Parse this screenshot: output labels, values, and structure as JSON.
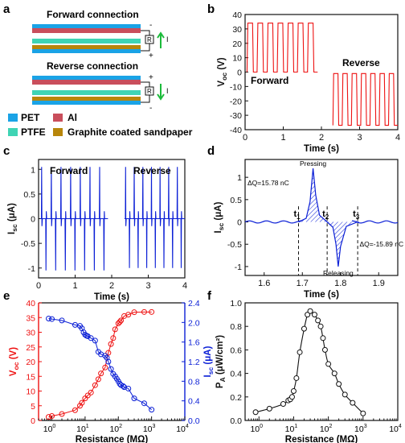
{
  "panels": {
    "a": {
      "letter": "a",
      "forward_title": "Forward connection",
      "reverse_title": "Reverse connection",
      "resistor": "R",
      "current": "I",
      "plus": "+",
      "minus": "-",
      "legend": [
        {
          "label": "PET",
          "color": "#1aa3e6"
        },
        {
          "label": "Al",
          "color": "#c94e5c"
        },
        {
          "label": "PTFE",
          "color": "#3fd4b4"
        },
        {
          "label": "Graphite coated sandpaper",
          "color": "#b8860b"
        }
      ]
    },
    "b": {
      "letter": "b",
      "label_forward": "Forward",
      "label_reverse": "Reverse"
    },
    "c": {
      "letter": "c",
      "label_forward": "Forward",
      "label_reverse": "Reverse"
    },
    "d": {
      "letter": "d",
      "pressing": "Pressing",
      "releasing": "Releasing",
      "dq_pos": "ΔQ=15.78 nC",
      "dq_neg": "ΔQ=-15.89 nC",
      "t1": "t",
      "t2": "t",
      "t3": "t",
      "sub1": "1",
      "sub2": "2",
      "sub3": "3"
    },
    "e": {
      "letter": "e"
    },
    "f": {
      "letter": "f"
    }
  },
  "colors": {
    "red": "#ee1111",
    "blue": "#0b1fd6",
    "black": "#111111"
  },
  "chart_data": [
    {
      "panel": "b",
      "type": "line",
      "xlabel": "Time (s)",
      "ylabel_main": "V",
      "ylabel_sub": "oc",
      "ylabel_unit": " (V)",
      "xlim": [
        0,
        4
      ],
      "ylim": [
        -40,
        40
      ],
      "xticks": [
        0,
        1,
        2,
        3,
        4
      ],
      "yticks": [
        -40,
        -30,
        -20,
        -10,
        0,
        10,
        20,
        30,
        40
      ],
      "series": [
        {
          "name": "Forward",
          "color": "#ee1111",
          "segments": [
            {
              "x0": 0.05,
              "x1": 1.9,
              "cycles": 7,
              "low": 0,
              "high": 34
            }
          ]
        },
        {
          "name": "Reverse",
          "color": "#ee1111",
          "segments": [
            {
              "x0": 2.3,
              "x1": 4.0,
              "cycles": 7,
              "low": -37,
              "high": -1
            }
          ]
        }
      ]
    },
    {
      "panel": "c",
      "type": "line",
      "xlabel": "Time (s)",
      "ylabel_main": "I",
      "ylabel_sub": "sc",
      "ylabel_unit": " (μA)",
      "xlim": [
        0,
        4
      ],
      "ylim": [
        -1.2,
        1.2
      ],
      "xticks": [
        0,
        1,
        2,
        3,
        4
      ],
      "yticks": [
        -1,
        -0.5,
        0,
        0.5,
        1
      ],
      "series": [
        {
          "name": "Forward",
          "color": "#0b1fd6",
          "cycles": 7,
          "x0": 0.05,
          "x1": 1.9,
          "pos_peak": 1.05,
          "neg_peak": -1.05
        },
        {
          "name": "Reverse",
          "color": "#0b1fd6",
          "cycles": 7,
          "x0": 2.35,
          "x1": 4.0,
          "pos_peak": 1.05,
          "neg_peak": -1.0
        }
      ]
    },
    {
      "panel": "d",
      "type": "line",
      "xlabel": "Time (s)",
      "ylabel_main": "I",
      "ylabel_sub": "sc",
      "ylabel_unit": " (μA)",
      "xlim": [
        1.55,
        1.95
      ],
      "ylim": [
        -1.2,
        1.4
      ],
      "xticks": [
        1.6,
        1.7,
        1.8,
        1.9
      ],
      "yticks": [
        -1,
        -0.5,
        0,
        0.5,
        1
      ],
      "t_markers": [
        1.69,
        1.765,
        1.845
      ],
      "pos_peak": {
        "x": 1.728,
        "y": 1.2
      },
      "neg_peak": {
        "x": 1.794,
        "y": -1.0
      }
    },
    {
      "panel": "e",
      "type": "scatter",
      "xlabel": "Resistance (MΩ)",
      "xscale": "log",
      "xlim_exp": [
        -0.4,
        4
      ],
      "xticks_exp": [
        0,
        1,
        2,
        3,
        4
      ],
      "ylabel_left_main": "V",
      "ylabel_left_sub": "oc",
      "ylabel_left_unit": " (V)",
      "ylabel_right_main": "I",
      "ylabel_right_sub": "sc",
      "ylabel_right_unit": " (μA)",
      "ylim_left": [
        0,
        40
      ],
      "yticks_left": [
        0,
        5,
        10,
        15,
        20,
        25,
        30,
        35,
        40
      ],
      "ylim_right": [
        0,
        2.4
      ],
      "yticks_right": [
        0,
        0.4,
        0.8,
        1.2,
        1.6,
        2.0,
        2.4
      ],
      "series": [
        {
          "name": "Voc",
          "axis": "left",
          "color": "#ee1111",
          "x": [
            0.8,
            1,
            2,
            5,
            7,
            8,
            10,
            12,
            15,
            20,
            25,
            30,
            40,
            50,
            60,
            70,
            80,
            100,
            110,
            120,
            150,
            200,
            300,
            600,
            1000
          ],
          "y": [
            1.2,
            1.5,
            2.2,
            3.5,
            5.0,
            6.0,
            7.5,
            8.5,
            9.5,
            12,
            14,
            16,
            18,
            23,
            26,
            28,
            31,
            33,
            33.5,
            34,
            35.5,
            36,
            36.8,
            36.9,
            36.9
          ]
        },
        {
          "name": "Isc",
          "axis": "right",
          "color": "#0b1fd6",
          "x": [
            0.8,
            1,
            2,
            5,
            7,
            8,
            9,
            10,
            11,
            12,
            15,
            20,
            25,
            30,
            40,
            45,
            50,
            60,
            70,
            80,
            90,
            100,
            110,
            120,
            140,
            150,
            200,
            300,
            600,
            1000
          ],
          "y": [
            2.08,
            2.07,
            2.04,
            1.95,
            1.93,
            1.88,
            1.8,
            1.75,
            1.73,
            1.72,
            1.68,
            1.63,
            1.4,
            1.35,
            1.32,
            1.28,
            1.2,
            1.05,
            0.95,
            0.9,
            0.85,
            0.8,
            0.75,
            0.72,
            0.7,
            0.68,
            0.65,
            0.45,
            0.35,
            0.22
          ]
        }
      ]
    },
    {
      "panel": "f",
      "type": "scatter",
      "xlabel": "Resistance (MΩ)",
      "xscale": "log",
      "xlim_exp": [
        -0.4,
        4
      ],
      "xticks_exp": [
        0,
        1,
        2,
        3,
        4
      ],
      "ylabel_main": "P",
      "ylabel_sub": "A",
      "ylabel_unit": " (μW/cm²)",
      "ylim": [
        0,
        1.0
      ],
      "yticks": [
        0,
        0.2,
        0.4,
        0.6,
        0.8,
        1.0
      ],
      "series": [
        {
          "name": "PA",
          "color": "#111111",
          "x": [
            0.8,
            2,
            5,
            7,
            8,
            9,
            10,
            12,
            15,
            20,
            25,
            30,
            40,
            50,
            60,
            70,
            80,
            100,
            150,
            200,
            300,
            500,
            1000
          ],
          "y": [
            0.07,
            0.1,
            0.14,
            0.17,
            0.18,
            0.2,
            0.25,
            0.36,
            0.58,
            0.78,
            0.9,
            0.93,
            0.9,
            0.85,
            0.8,
            0.7,
            0.6,
            0.48,
            0.4,
            0.31,
            0.22,
            0.15,
            0.06
          ]
        }
      ]
    }
  ]
}
